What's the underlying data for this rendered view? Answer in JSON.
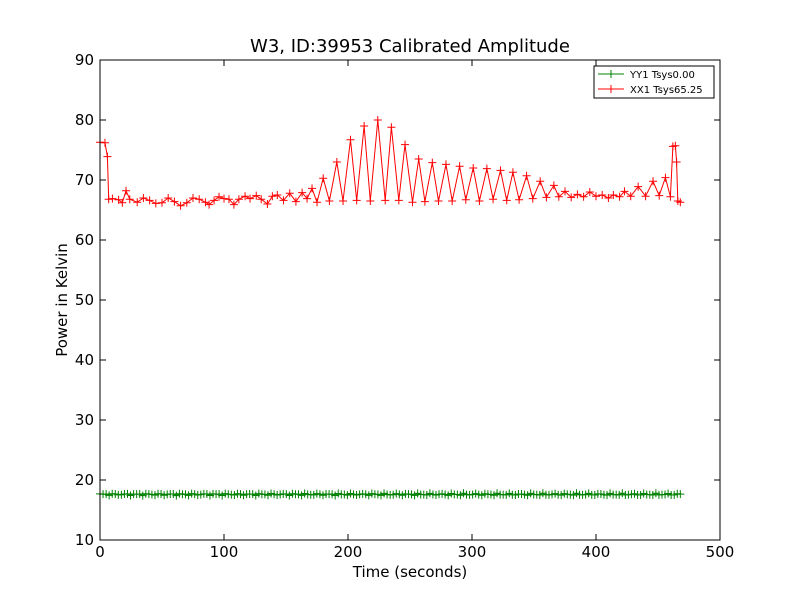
{
  "chart_data": {
    "type": "line",
    "title": "W3, ID:39953 Calibrated Amplitude",
    "xlabel": "Time (seconds)",
    "ylabel": "Power in Kelvin",
    "xlim": [
      0,
      500
    ],
    "ylim": [
      10,
      90
    ],
    "xticks": [
      "0",
      "100",
      "200",
      "300",
      "400",
      "500"
    ],
    "yticks": [
      "10",
      "20",
      "30",
      "40",
      "50",
      "60",
      "70",
      "80",
      "90"
    ],
    "grid": false,
    "legend": "top-right",
    "series": [
      {
        "name": "YY1 Tsys0.00",
        "color": "#008000",
        "marker": "plus",
        "constant": 17.6,
        "x_range": [
          0,
          468
        ]
      },
      {
        "name": "XX1 Tsys65.25",
        "color": "#ff0000",
        "marker": "plus",
        "points": [
          [
            0,
            76.3
          ],
          [
            4,
            76.2
          ],
          [
            6,
            73.9
          ],
          [
            7,
            66.8
          ],
          [
            10,
            66.9
          ],
          [
            15,
            66.7
          ],
          [
            18,
            66.2
          ],
          [
            21,
            68.2
          ],
          [
            24,
            66.8
          ],
          [
            30,
            66.3
          ],
          [
            35,
            67.0
          ],
          [
            40,
            66.6
          ],
          [
            45,
            66.1
          ],
          [
            50,
            66.2
          ],
          [
            55,
            67.0
          ],
          [
            60,
            66.4
          ],
          [
            65,
            65.7
          ],
          [
            70,
            66.2
          ],
          [
            75,
            67.0
          ],
          [
            80,
            66.8
          ],
          [
            85,
            66.3
          ],
          [
            88,
            65.9
          ],
          [
            92,
            66.6
          ],
          [
            96,
            67.2
          ],
          [
            100,
            66.9
          ],
          [
            104,
            66.8
          ],
          [
            108,
            65.9
          ],
          [
            112,
            66.8
          ],
          [
            117,
            67.3
          ],
          [
            121,
            66.9
          ],
          [
            126,
            67.4
          ],
          [
            130,
            66.8
          ],
          [
            135,
            66.0
          ],
          [
            139,
            67.3
          ],
          [
            143,
            67.5
          ],
          [
            148,
            66.6
          ],
          [
            153,
            67.8
          ],
          [
            158,
            66.4
          ],
          [
            163,
            67.9
          ],
          [
            167,
            66.9
          ],
          [
            171,
            68.6
          ],
          [
            175,
            66.3
          ],
          [
            180,
            70.3
          ],
          [
            185,
            66.5
          ],
          [
            191,
            73.0
          ],
          [
            196,
            66.5
          ],
          [
            202,
            76.7
          ],
          [
            207,
            66.6
          ],
          [
            213,
            79.0
          ],
          [
            218,
            66.5
          ],
          [
            224,
            80.0
          ],
          [
            230,
            66.6
          ],
          [
            235,
            78.8
          ],
          [
            241,
            66.6
          ],
          [
            246,
            75.9
          ],
          [
            252,
            66.3
          ],
          [
            257,
            73.5
          ],
          [
            262,
            66.4
          ],
          [
            268,
            72.9
          ],
          [
            273,
            66.5
          ],
          [
            279,
            72.6
          ],
          [
            284,
            66.5
          ],
          [
            290,
            72.3
          ],
          [
            295,
            66.7
          ],
          [
            301,
            72.0
          ],
          [
            306,
            66.5
          ],
          [
            312,
            71.9
          ],
          [
            317,
            66.8
          ],
          [
            323,
            71.6
          ],
          [
            328,
            66.6
          ],
          [
            333,
            71.3
          ],
          [
            338,
            66.7
          ],
          [
            344,
            70.7
          ],
          [
            349,
            66.9
          ],
          [
            355,
            69.8
          ],
          [
            360,
            67.1
          ],
          [
            366,
            69.1
          ],
          [
            370,
            67.2
          ],
          [
            375,
            68.1
          ],
          [
            380,
            67.1
          ],
          [
            385,
            67.6
          ],
          [
            390,
            67.2
          ],
          [
            395,
            68.0
          ],
          [
            400,
            67.3
          ],
          [
            405,
            67.5
          ],
          [
            410,
            67.0
          ],
          [
            414,
            67.5
          ],
          [
            419,
            67.2
          ],
          [
            423,
            68.1
          ],
          [
            428,
            67.3
          ],
          [
            434,
            68.9
          ],
          [
            440,
            67.3
          ],
          [
            446,
            69.8
          ],
          [
            451,
            67.4
          ],
          [
            456,
            70.4
          ],
          [
            460,
            67.2
          ],
          [
            462,
            75.6
          ],
          [
            464,
            75.7
          ],
          [
            465,
            73.0
          ],
          [
            466,
            66.5
          ],
          [
            468,
            66.3
          ]
        ]
      }
    ]
  }
}
